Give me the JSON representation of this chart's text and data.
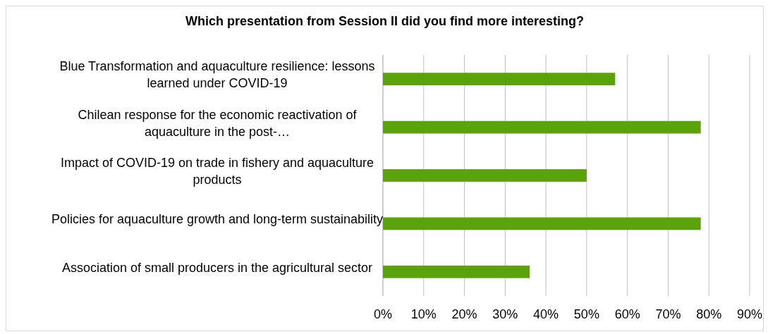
{
  "chart_data": {
    "type": "bar",
    "orientation": "horizontal",
    "title": "Which presentation from Session II did you find more interesting?",
    "categories": [
      "Blue Transformation and aquaculture resilience: lessons learned under COVID-19",
      "Chilean response for the economic reactivation of aquaculture in the post-…",
      "Impact of COVID-19 on trade in fishery and aquaculture products",
      "Policies for aquaculture growth and long-term sustainability",
      "Association of small producers in the agricultural sector"
    ],
    "values": [
      57,
      78,
      50,
      78,
      36
    ],
    "color": "#5ba30a",
    "xlim": [
      0,
      90
    ],
    "xticks": [
      {
        "value": 0,
        "label": "0%"
      },
      {
        "value": 10,
        "label": "10%"
      },
      {
        "value": 20,
        "label": "20%"
      },
      {
        "value": 30,
        "label": "30%"
      },
      {
        "value": 40,
        "label": "40%"
      },
      {
        "value": 50,
        "label": "50%"
      },
      {
        "value": 60,
        "label": "60%"
      },
      {
        "value": 70,
        "label": "70%"
      },
      {
        "value": 80,
        "label": "80%"
      },
      {
        "value": 90,
        "label": "90%"
      }
    ],
    "grid": "x"
  }
}
